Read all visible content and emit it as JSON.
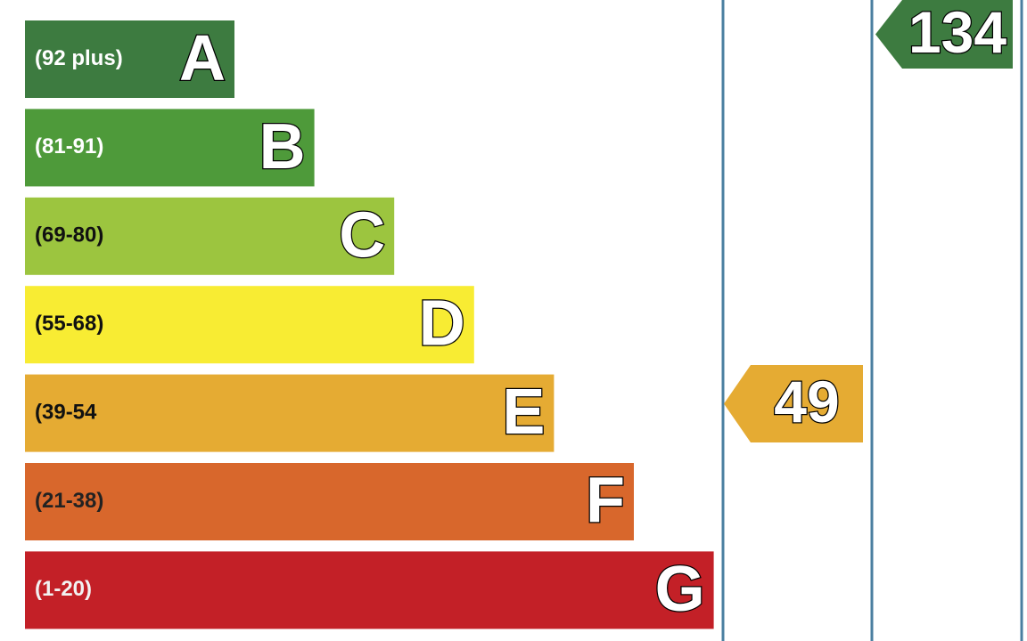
{
  "bands": [
    {
      "range": "(92 plus)",
      "letter": "A",
      "color": "#3d7b40",
      "text_color": "#ffffff"
    },
    {
      "range": "(81-91)",
      "letter": "B",
      "color": "#4e9a3a",
      "text_color": "#ffffff"
    },
    {
      "range": "(69-80)",
      "letter": "C",
      "color": "#9cc53f",
      "text_color": "#111111"
    },
    {
      "range": "(55-68)",
      "letter": "D",
      "color": "#f8ec33",
      "text_color": "#111111"
    },
    {
      "range": "(39-54",
      "letter": "E",
      "color": "#e5ab33",
      "text_color": "#111111"
    },
    {
      "range": "(21-38)",
      "letter": "F",
      "color": "#d8672c",
      "text_color": "#222222"
    },
    {
      "range": "(1-20)",
      "letter": "G",
      "color": "#c32027",
      "text_color": "#f2f2f2"
    }
  ],
  "current": {
    "value": 49,
    "color": "#e5ab33"
  },
  "potential": {
    "value": 134,
    "color": "#3d7b40"
  }
}
